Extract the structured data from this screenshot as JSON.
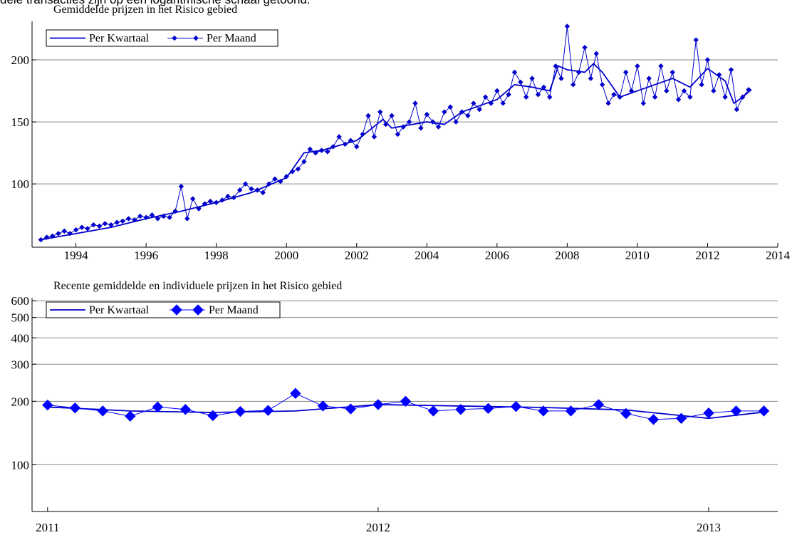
{
  "header_note": "dele transacties zijn op een logaritmische schaal getoond.",
  "chart_data": [
    {
      "type": "line",
      "title": "Gemiddelde prijzen in het Risico gebied",
      "xlim": [
        1992.75,
        2014
      ],
      "xticks": [
        1994,
        1996,
        1998,
        2000,
        2002,
        2004,
        2006,
        2008,
        2010,
        2012,
        2014
      ],
      "ylim": [
        49,
        231
      ],
      "yticks": [
        100,
        150,
        200
      ],
      "log_scale": false,
      "grid": true,
      "legend_position": "upper left",
      "series": [
        {
          "name": "Per Kwartaal",
          "color": "#0000cc",
          "marker": "none",
          "x": [
            1993,
            1994,
            1995,
            1996,
            1997,
            1998,
            1999,
            2000,
            2000.5,
            2001,
            2002,
            2002.75,
            2003,
            2004,
            2004.5,
            2005,
            2006,
            2006.5,
            2007,
            2007.5,
            2007.75,
            2008,
            2008.5,
            2008.75,
            2009,
            2009.5,
            2010,
            2010.5,
            2011,
            2011.5,
            2012,
            2012.5,
            2012.75,
            2013,
            2013.25
          ],
          "values": [
            55,
            60,
            65,
            72,
            78,
            85,
            93,
            105,
            125,
            127,
            135,
            152,
            145,
            150,
            148,
            158,
            168,
            180,
            178,
            175,
            195,
            192,
            190,
            197,
            190,
            170,
            175,
            180,
            185,
            178,
            193,
            183,
            165,
            170,
            176
          ]
        },
        {
          "name": "Per Maand",
          "color": "#0000cc",
          "marker": "diamond",
          "x": [
            1993,
            1993.17,
            1993.33,
            1993.5,
            1993.67,
            1993.83,
            1994,
            1994.17,
            1994.33,
            1994.5,
            1994.67,
            1994.83,
            1995,
            1995.17,
            1995.33,
            1995.5,
            1995.67,
            1995.83,
            1996,
            1996.17,
            1996.33,
            1996.5,
            1996.67,
            1996.83,
            1997,
            1997.17,
            1997.33,
            1997.5,
            1997.67,
            1997.83,
            1998,
            1998.17,
            1998.33,
            1998.5,
            1998.67,
            1998.83,
            1999,
            1999.17,
            1999.33,
            1999.5,
            1999.67,
            1999.83,
            2000,
            2000.17,
            2000.33,
            2000.5,
            2000.67,
            2000.83,
            2001,
            2001.17,
            2001.33,
            2001.5,
            2001.67,
            2001.83,
            2002,
            2002.17,
            2002.33,
            2002.5,
            2002.67,
            2002.83,
            2003,
            2003.17,
            2003.33,
            2003.5,
            2003.67,
            2003.83,
            2004,
            2004.17,
            2004.33,
            2004.5,
            2004.67,
            2004.83,
            2005,
            2005.17,
            2005.33,
            2005.5,
            2005.67,
            2005.83,
            2006,
            2006.17,
            2006.33,
            2006.5,
            2006.67,
            2006.83,
            2007,
            2007.17,
            2007.33,
            2007.5,
            2007.67,
            2007.83,
            2008,
            2008.17,
            2008.33,
            2008.5,
            2008.67,
            2008.83,
            2009,
            2009.17,
            2009.33,
            2009.5,
            2009.67,
            2009.83,
            2010,
            2010.17,
            2010.33,
            2010.5,
            2010.67,
            2010.83,
            2011,
            2011.17,
            2011.33,
            2011.5,
            2011.67,
            2011.83,
            2012,
            2012.17,
            2012.33,
            2012.5,
            2012.67,
            2012.83,
            2013,
            2013.17
          ],
          "values": [
            55,
            57,
            58,
            60,
            62,
            60,
            63,
            65,
            64,
            67,
            66,
            68,
            67,
            69,
            70,
            72,
            71,
            74,
            73,
            75,
            72,
            74,
            73,
            78,
            98,
            72,
            88,
            80,
            84,
            86,
            85,
            87,
            90,
            89,
            95,
            100,
            96,
            95,
            93,
            100,
            104,
            102,
            106,
            110,
            112,
            118,
            128,
            125,
            127,
            126,
            130,
            138,
            132,
            135,
            130,
            140,
            155,
            138,
            158,
            148,
            155,
            140,
            146,
            150,
            165,
            145,
            156,
            150,
            146,
            158,
            162,
            150,
            158,
            155,
            165,
            160,
            170,
            165,
            175,
            165,
            172,
            190,
            182,
            170,
            185,
            172,
            178,
            170,
            195,
            185,
            227,
            180,
            190,
            210,
            185,
            205,
            180,
            165,
            172,
            170,
            190,
            175,
            195,
            165,
            185,
            170,
            195,
            175,
            190,
            168,
            175,
            170,
            216,
            180,
            200,
            175,
            188,
            170,
            192,
            160,
            170,
            176
          ]
        }
      ]
    },
    {
      "type": "line",
      "title": "Recente gemiddelde en individuele prijzen in het Risico gebied",
      "xlim": [
        2010.953,
        2013.209
      ],
      "xticks": [
        2011,
        2012,
        2013
      ],
      "ylim": [
        60,
        620
      ],
      "yticks": [
        100,
        200,
        300,
        400,
        500,
        600
      ],
      "log_scale": true,
      "grid": true,
      "legend_position": "upper left",
      "series": [
        {
          "name": "Per Kwartaal",
          "color": "#0000cc",
          "marker": "none",
          "x": [
            2011,
            2011.25,
            2011.5,
            2011.75,
            2012,
            2012.25,
            2012.5,
            2012.75,
            2013,
            2013.17
          ],
          "values": [
            188,
            180,
            177,
            180,
            193,
            190,
            187,
            182,
            166,
            178
          ]
        },
        {
          "name": "Per Maand",
          "color": "#0000ff",
          "marker": "diamond",
          "x": [
            2011,
            2011.083,
            2011.167,
            2011.25,
            2011.333,
            2011.417,
            2011.5,
            2011.583,
            2011.667,
            2011.75,
            2011.833,
            2011.917,
            2012,
            2012.083,
            2012.167,
            2012.25,
            2012.333,
            2012.417,
            2012.5,
            2012.583,
            2012.667,
            2012.75,
            2012.833,
            2012.917,
            2013,
            2013.083,
            2013.167
          ],
          "values": [
            192,
            186,
            180,
            170,
            188,
            183,
            171,
            179,
            181,
            218,
            190,
            184,
            193,
            200,
            180,
            183,
            185,
            189,
            180,
            180,
            193,
            175,
            164,
            166,
            176,
            180,
            180
          ]
        }
      ]
    }
  ]
}
